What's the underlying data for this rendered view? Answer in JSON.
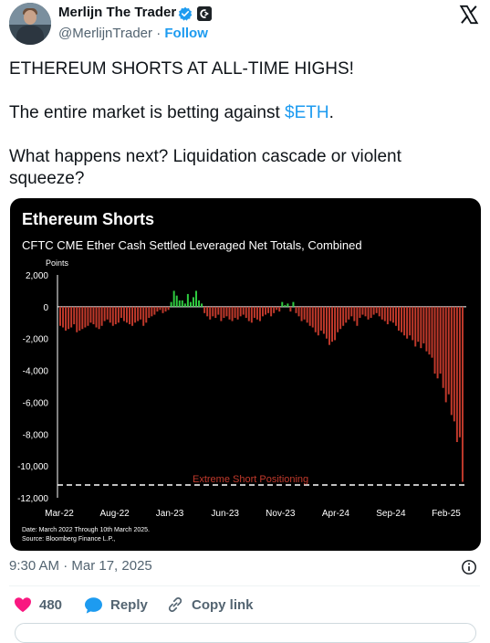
{
  "tweet": {
    "author_name": "Merlijn The Trader",
    "handle": "@MerlijnTrader",
    "separator": "·",
    "follow_label": "Follow",
    "line1": "ETHEREUM SHORTS AT ALL-TIME HIGHS!",
    "line2_before": "The entire market is betting against ",
    "cashtag": "$ETH",
    "line2_after": ".",
    "line3": "What happens next? Liquidation cascade or violent",
    "line4": "squeeze?",
    "timestamp": "9:30 AM · Mar 17, 2025",
    "like_count": "480",
    "reply_label": "Reply",
    "copy_link_label": "Copy link",
    "icons": [
      "verified-badge-icon",
      "affiliate-badge-icon",
      "x-logo-icon",
      "info-icon",
      "heart-icon",
      "reply-icon",
      "link-icon"
    ],
    "colors": {
      "accent": "#1d9bf0",
      "like": "#f91880",
      "muted": "#536471"
    }
  },
  "chart_data": {
    "type": "bar",
    "title": "Ethereum Shorts",
    "subtitle": "CFTC CME Ether Cash Settled Leveraged Net Totals, Combined",
    "ylabel": "Points",
    "ylim": [
      -12000,
      2000
    ],
    "yticks": [
      2000,
      0,
      -2000,
      -4000,
      -6000,
      -8000,
      -10000,
      -12000
    ],
    "ytick_labels": [
      "2,000",
      "0",
      "-2,000",
      "-4,000",
      "-6,000",
      "-8,000",
      "-10,000",
      "-12,000"
    ],
    "xtick_labels": [
      "Mar-22",
      "Aug-22",
      "Jan-23",
      "Jun-23",
      "Nov-23",
      "Apr-24",
      "Sep-24",
      "Feb-25"
    ],
    "annotation": "Extreme Short Positioning",
    "threshold": -11200,
    "footnote1": "Date: March 2022 Through 10th March 2025.",
    "footnote2": "Source: Bloomberg Finance L.P., ",
    "colors": {
      "negative": "#c0392b",
      "positive": "#2ecc40",
      "axis": "#ffffff",
      "annotation": "#c0392b"
    },
    "values": [
      -1200,
      -1300,
      -1500,
      -1400,
      -1300,
      -1100,
      -1600,
      -1500,
      -1400,
      -1300,
      -1200,
      -1000,
      -1100,
      -1300,
      -1400,
      -1200,
      -900,
      -800,
      -1000,
      -1200,
      -1100,
      -1000,
      -700,
      -900,
      -1000,
      -1100,
      -1200,
      -1000,
      -900,
      -800,
      -1200,
      -1000,
      -700,
      -600,
      -500,
      -300,
      -200,
      -400,
      -300,
      -200,
      300,
      1000,
      700,
      400,
      400,
      200,
      800,
      300,
      600,
      1000,
      400,
      200,
      -400,
      -600,
      -800,
      -600,
      -700,
      -500,
      -900,
      -700,
      -600,
      -800,
      -900,
      -700,
      -800,
      -600,
      -500,
      -700,
      -900,
      -1000,
      -700,
      -800,
      -900,
      -600,
      -500,
      -400,
      -600,
      -400,
      -200,
      -300,
      300,
      100,
      200,
      -300,
      300,
      -400,
      -600,
      -900,
      -800,
      -1000,
      -1200,
      -1300,
      -1600,
      -1800,
      -1500,
      -1700,
      -2000,
      -2400,
      -2200,
      -2100,
      -1600,
      -1400,
      -1200,
      -1000,
      -800,
      -600,
      -900,
      -1200,
      -700,
      -500,
      -600,
      -800,
      -700,
      -500,
      -400,
      -600,
      -800,
      -900,
      -1100,
      -900,
      -1000,
      -1200,
      -1500,
      -1600,
      -1800,
      -2000,
      -1800,
      -2100,
      -2500,
      -2200,
      -2600,
      -2300,
      -2800,
      -3000,
      -3200,
      -4200,
      -4500,
      -4200,
      -5100,
      -6000,
      -5500,
      -6800,
      -7200,
      -8500,
      -8200,
      -11000
    ]
  }
}
